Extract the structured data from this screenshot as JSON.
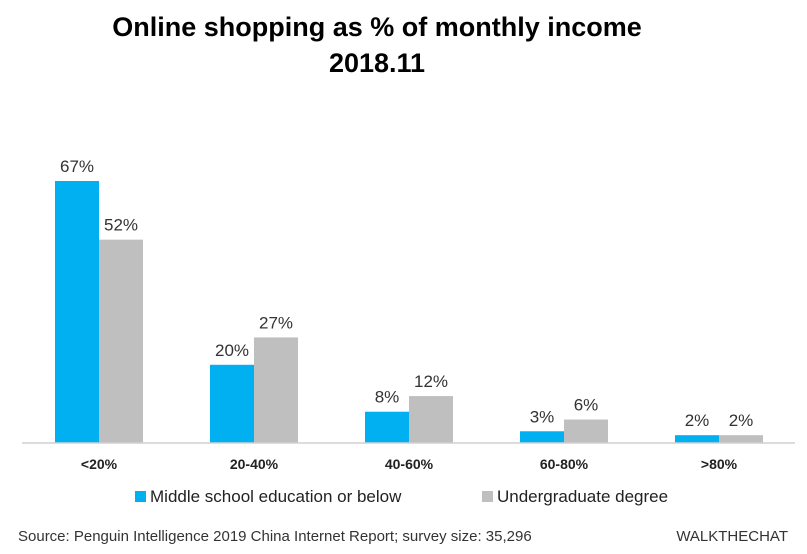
{
  "chart_data": {
    "type": "bar",
    "title": "Online shopping as % of monthly income",
    "subtitle": "2018.11",
    "categories": [
      "<20%",
      "20-40%",
      "40-60%",
      "60-80%",
      ">80%"
    ],
    "series": [
      {
        "name": "Middle school education or below",
        "values": [
          67,
          20,
          8,
          3,
          2
        ],
        "labels": [
          "67%",
          "20%",
          "8%",
          "3%",
          "2%"
        ],
        "color": "#00b0f0"
      },
      {
        "name": "Undergraduate degree",
        "values": [
          52,
          27,
          12,
          6,
          2
        ],
        "labels": [
          "52%",
          "27%",
          "12%",
          "6%",
          "2%"
        ],
        "color": "#bfbfbf"
      }
    ],
    "ylim": [
      0,
      70
    ],
    "grid": false,
    "legend_position": "bottom"
  },
  "source": "Source: Penguin Intelligence 2019 China Internet Report; survey size: 35,296",
  "brand": "WALKTHECHAT"
}
